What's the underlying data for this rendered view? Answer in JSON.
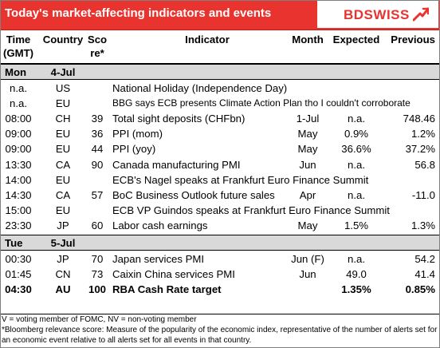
{
  "header": {
    "title": "Today's market-affecting indicators and events",
    "logo": "BDSWISS",
    "accent_color": "#e8332f"
  },
  "columns": {
    "time": [
      "Time",
      "(GMT)"
    ],
    "country": "Country",
    "score": [
      "Sco",
      "re*"
    ],
    "indicator": "Indicator",
    "month": "Month",
    "expected": "Expected",
    "previous": "Previous"
  },
  "days": [
    {
      "day": "Mon",
      "date": "4-Jul"
    },
    {
      "day": "Tue",
      "date": "5-Jul"
    }
  ],
  "rows_mon": [
    {
      "time": "n.a.",
      "country": "US",
      "score": "",
      "indicator": "National Holiday (Independence Day)",
      "month": "",
      "expected": "",
      "previous": ""
    },
    {
      "time": "n.a.",
      "country": "EU",
      "score": "",
      "indicator": "BBG says ECB presents Climate Action Plan tho I couldn't corroborate",
      "month": "",
      "expected": "",
      "previous": ""
    },
    {
      "time": "08:00",
      "country": "CH",
      "score": "39",
      "indicator": "Total sight deposits (CHFbn)",
      "month": "1-Jul",
      "expected": "n.a.",
      "previous": "748.46"
    },
    {
      "time": "09:00",
      "country": "EU",
      "score": "36",
      "indicator": "PPI (mom)",
      "month": "May",
      "expected": "0.9%",
      "previous": "1.2%"
    },
    {
      "time": "09:00",
      "country": "EU",
      "score": "44",
      "indicator": "PPI (yoy)",
      "month": "May",
      "expected": "36.6%",
      "previous": "37.2%"
    },
    {
      "time": "13:30",
      "country": "CA",
      "score": "90",
      "indicator": "Canada manufacturing PMI",
      "month": "Jun",
      "expected": "n.a.",
      "previous": "56.8"
    },
    {
      "time": "14:00",
      "country": "EU",
      "score": "",
      "indicator": "ECB's Nagel speaks at Frankfurt Euro Finance Summit",
      "month": "",
      "expected": "",
      "previous": ""
    },
    {
      "time": "14:30",
      "country": "CA",
      "score": "57",
      "indicator": "BoC Business Outlook future sales",
      "month": "Apr",
      "expected": "n.a.",
      "previous": "-11.0"
    },
    {
      "time": "15:00",
      "country": "EU",
      "score": "",
      "indicator": "ECB VP Guindos speaks at Frankfurt Euro Finance Summit",
      "month": "",
      "expected": "",
      "previous": ""
    },
    {
      "time": "23:30",
      "country": "JP",
      "score": "60",
      "indicator": "Labor cash earnings",
      "month": "May",
      "expected": "1.5%",
      "previous": "1.3%"
    }
  ],
  "rows_tue": [
    {
      "time": "00:30",
      "country": "JP",
      "score": "70",
      "indicator": "Japan services PMI",
      "month": "Jun (F)",
      "expected": "n.a.",
      "previous": "54.2"
    },
    {
      "time": "01:45",
      "country": "CN",
      "score": "73",
      "indicator": "Caixin China services PMI",
      "month": "Jun",
      "expected": "49.0",
      "previous": "41.4"
    },
    {
      "time": "04:30",
      "country": "AU",
      "score": "100",
      "indicator": "RBA Cash Rate target",
      "month": "",
      "expected": "1.35%",
      "previous": "0.85%"
    }
  ],
  "footer": {
    "note1": "V = voting member of FOMC, NV = non-voting member",
    "note2": "*Bloomberg relevance score:  Measure of the popularity of the economic index, representative of the number of alerts set for an economic event relative to all alerts set for all events in that country."
  }
}
